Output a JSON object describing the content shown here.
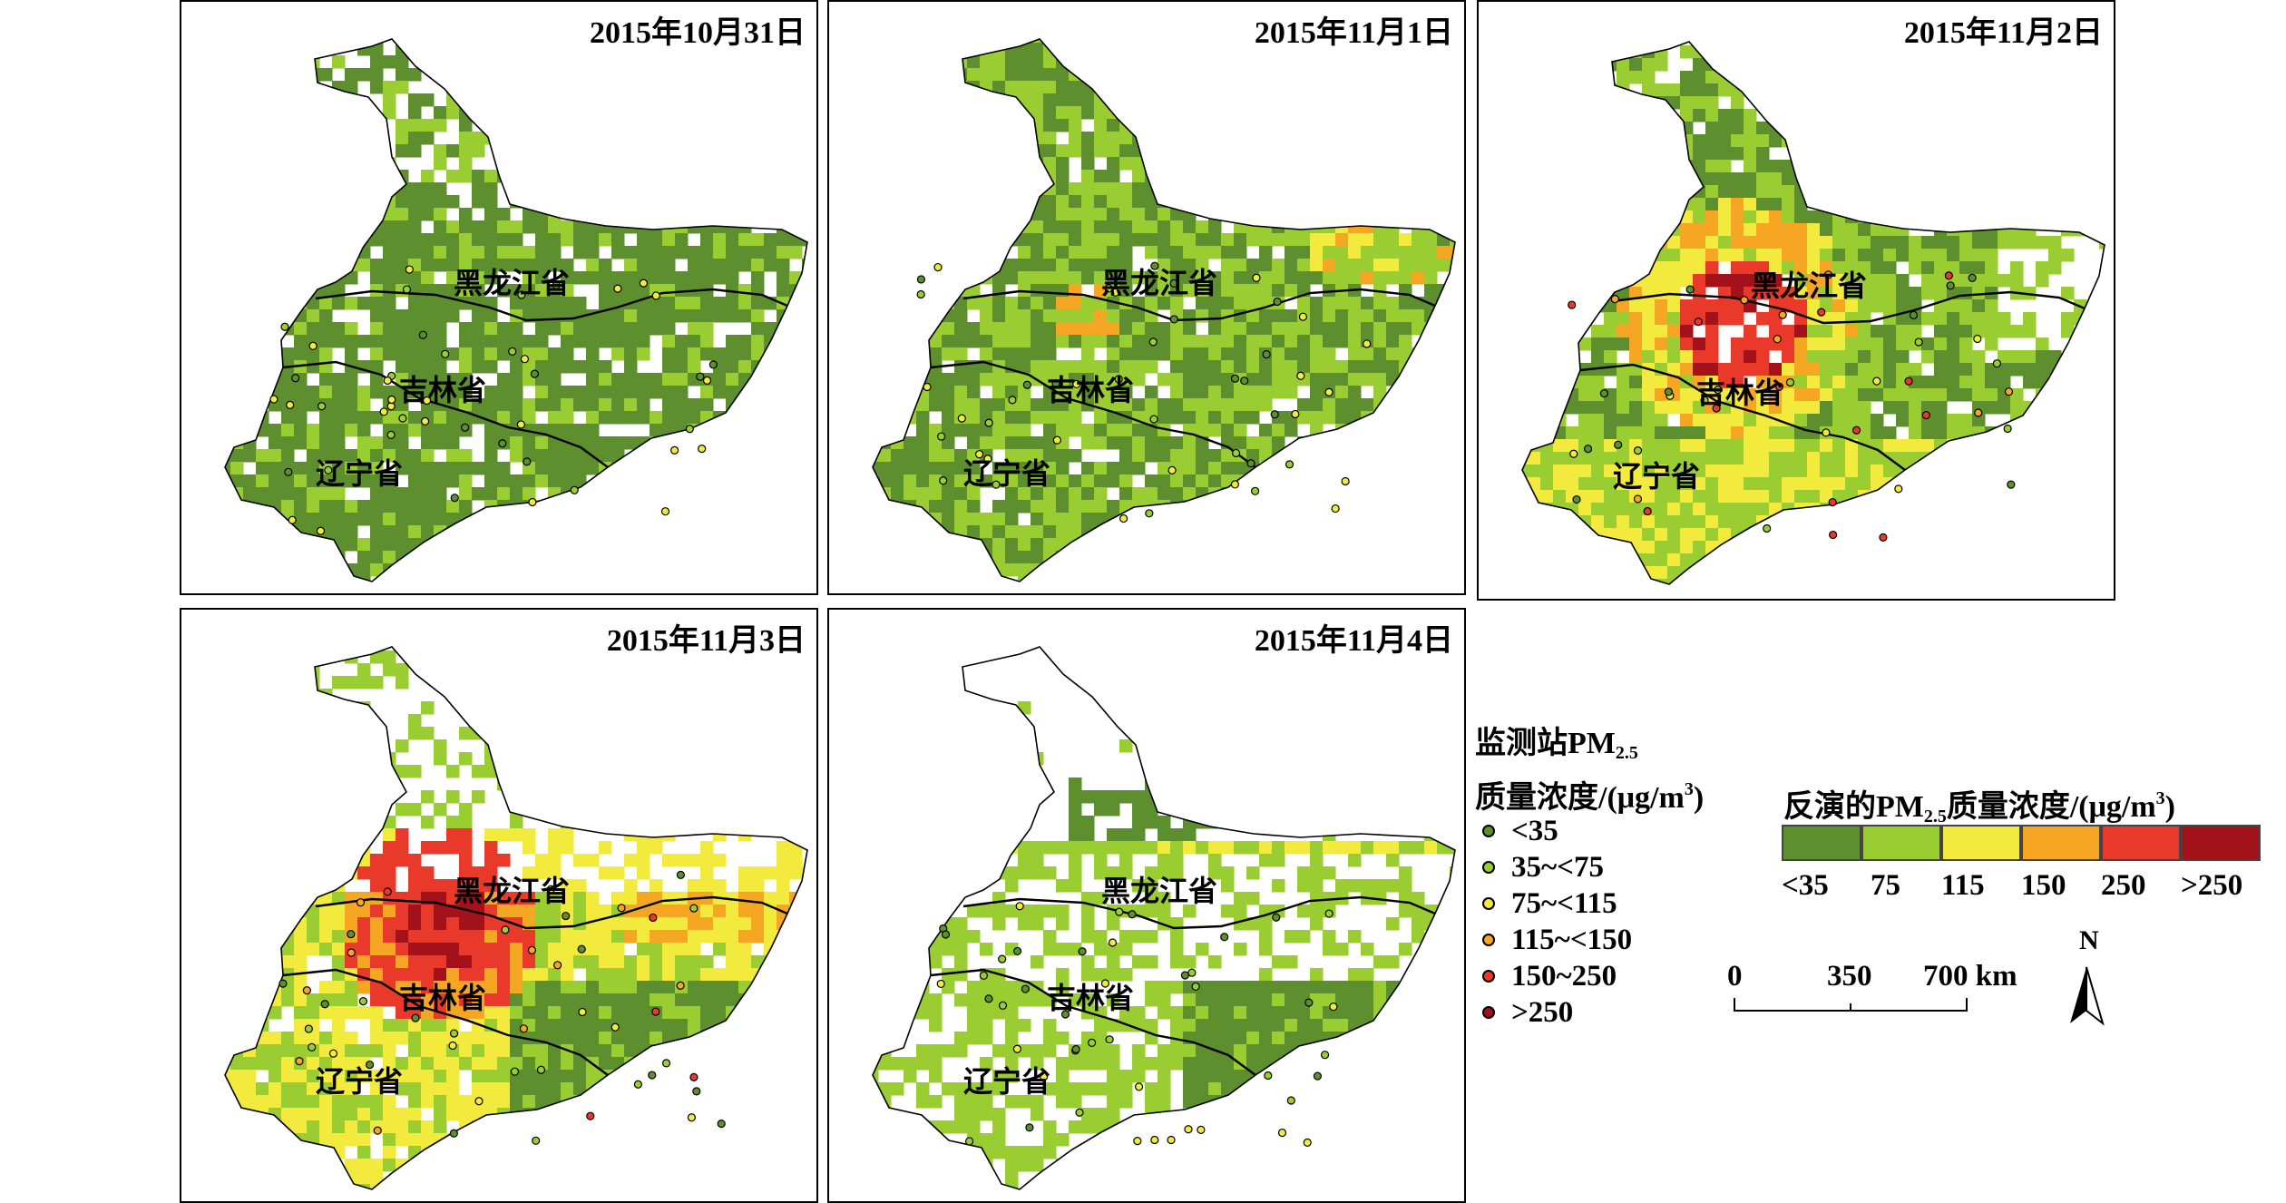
{
  "panels": [
    {
      "date": "2015年10月31日",
      "scene": "green"
    },
    {
      "date": "2015年11月1日",
      "scene": "green_light"
    },
    {
      "date": "2015年11月2日",
      "scene": "red_center"
    },
    {
      "date": "2015年11月3日",
      "scene": "orange_red"
    },
    {
      "date": "2015年11月4日",
      "scene": "sparse"
    }
  ],
  "province_labels": {
    "heilongjiang": "黑龙江省",
    "jilin": "吉林省",
    "liaoning": "辽宁省"
  },
  "station_legend": {
    "title_line1": "监测站PM",
    "title_sub": "2.5",
    "title_line2": "质量浓度/(μg/m",
    "title_sup": "3",
    "title_end": ")",
    "classes": [
      {
        "label": "<35",
        "color": "#5d8f2e"
      },
      {
        "label": "35~<75",
        "color": "#9acd32"
      },
      {
        "label": "75~<115",
        "color": "#f2ea3c"
      },
      {
        "label": "115~<150",
        "color": "#f5a623"
      },
      {
        "label": "150~250",
        "color": "#e8392a"
      },
      {
        "label": ">250",
        "color": "#a3121a"
      }
    ]
  },
  "retrieval_legend": {
    "title_prefix": "反演的PM",
    "title_sub": "2.5",
    "title_mid": "质量浓度/(μg/m",
    "title_sup": "3",
    "title_end": ")",
    "colors": [
      "#5d8f2e",
      "#9acd32",
      "#f2ea3c",
      "#f5a623",
      "#e8392a",
      "#a3121a"
    ],
    "labels": [
      "<35",
      "75",
      "115",
      "150",
      "250",
      ">250"
    ]
  },
  "scale_bar": {
    "labels": [
      "0",
      "350",
      "700 km"
    ]
  },
  "north_arrow": {
    "label": "N"
  }
}
